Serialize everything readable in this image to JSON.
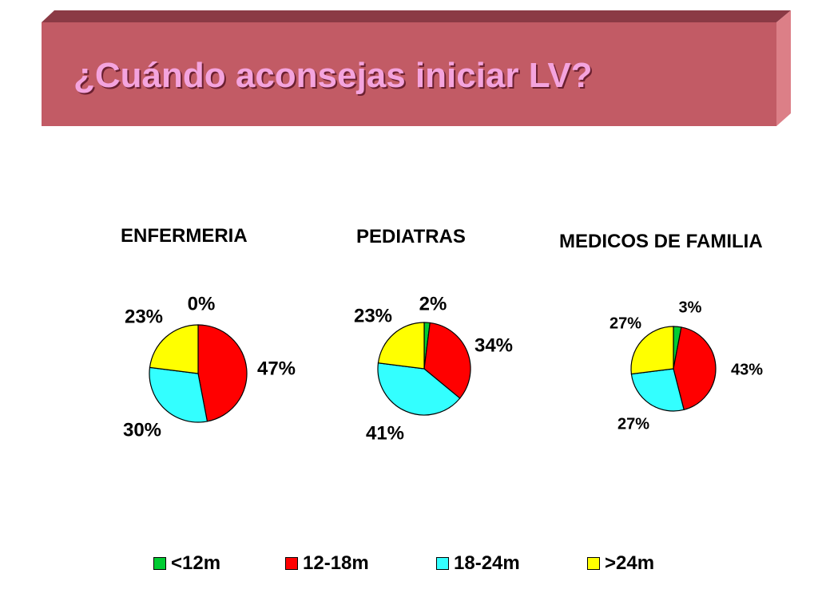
{
  "slide": {
    "title": "¿Cuándo aconsejas iniciar LV?"
  },
  "colors": {
    "banner_front": "#c25b65",
    "banner_top": "#8b3a45",
    "banner_side": "#dc7f87",
    "title_text": "#f4a4de"
  },
  "chart_data": [
    {
      "type": "pie",
      "title": "ENFERMERIA",
      "categories": [
        "<12m",
        "12-18m",
        "18-24m",
        ">24m"
      ],
      "values": [
        0,
        47,
        30,
        23
      ],
      "labels": [
        "0%",
        "47%",
        "30%",
        "23%"
      ],
      "colors": [
        "#00cc33",
        "#ff0000",
        "#33ffff",
        "#ffff00"
      ]
    },
    {
      "type": "pie",
      "title": "PEDIATRAS",
      "categories": [
        "<12m",
        "12-18m",
        "18-24m",
        ">24m"
      ],
      "values": [
        2,
        34,
        41,
        23
      ],
      "labels": [
        "2%",
        "34%",
        "41%",
        "23%"
      ],
      "colors": [
        "#00cc33",
        "#ff0000",
        "#33ffff",
        "#ffff00"
      ]
    },
    {
      "type": "pie",
      "title": "MEDICOS DE FAMILIA",
      "categories": [
        "<12m",
        "12-18m",
        "18-24m",
        ">24m"
      ],
      "values": [
        3,
        43,
        27,
        27
      ],
      "labels": [
        "3%",
        "43%",
        "27%",
        "27%"
      ],
      "colors": [
        "#00cc33",
        "#ff0000",
        "#33ffff",
        "#ffff00"
      ]
    }
  ],
  "legend": {
    "items": [
      {
        "label": "<12m",
        "color": "#00cc33"
      },
      {
        "label": "12-18m",
        "color": "#ff0000"
      },
      {
        "label": "18-24m",
        "color": "#33ffff"
      },
      {
        "label": ">24m",
        "color": "#ffff00"
      }
    ]
  }
}
